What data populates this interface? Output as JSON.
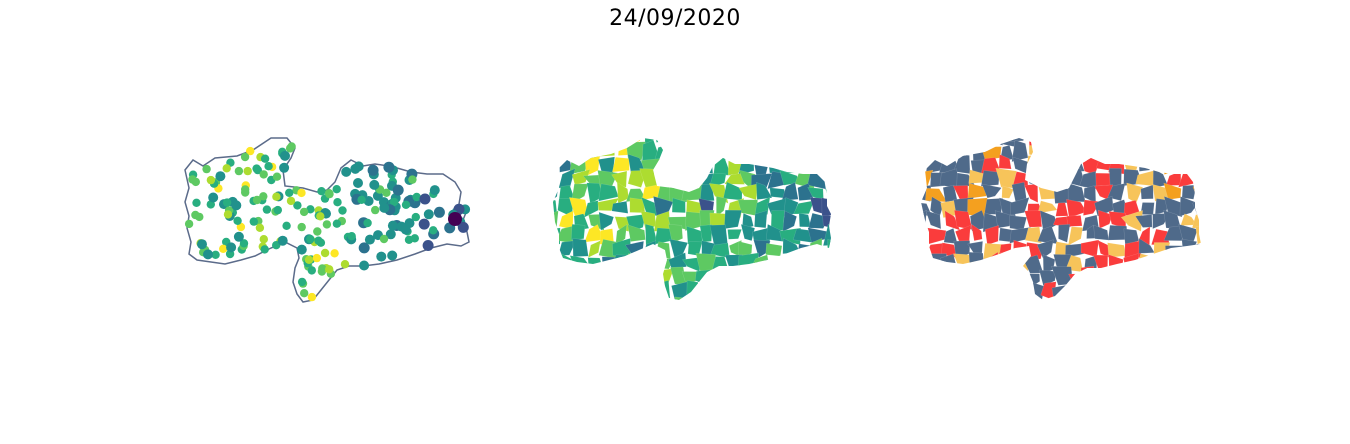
{
  "figure": {
    "title": "24/09/2020"
  },
  "panels": [
    {
      "id": "map-points",
      "kind": "proportional-symbol map",
      "colormap": "viridis",
      "outline_color": "#5b6b8a"
    },
    {
      "id": "map-choropleth",
      "kind": "choropleth map",
      "colormap": "viridis"
    },
    {
      "id": "map-categories",
      "kind": "categorical map",
      "category_colors": [
        "#4f6a8a",
        "#fa3c3c",
        "#f7c45a",
        "#f4a01f"
      ]
    }
  ],
  "palette": {
    "viridis": [
      "#440154",
      "#3b528b",
      "#2c728e",
      "#21918c",
      "#28ae80",
      "#5ec962",
      "#addc30",
      "#fde725"
    ]
  }
}
